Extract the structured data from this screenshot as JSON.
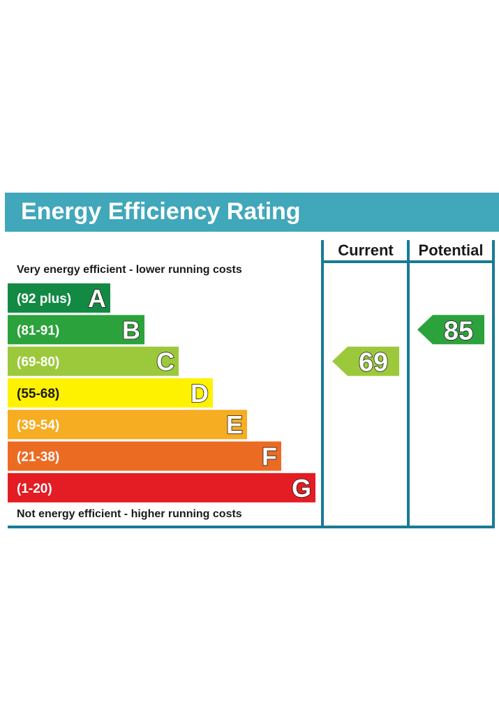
{
  "title": "Energy Efficiency Rating",
  "columns": {
    "current": "Current",
    "potential": "Potential"
  },
  "top_note": "Very energy efficient - lower running costs",
  "bottom_note": "Not energy efficient - higher running costs",
  "colors": {
    "header": "#41a7bb",
    "frame": "#1a7a96",
    "bands": [
      "#138a43",
      "#2ca23c",
      "#9cc93b",
      "#fff200",
      "#f6ad22",
      "#ec6b23",
      "#e31d23"
    ]
  },
  "chart_data": {
    "type": "bar",
    "categories": [
      "A",
      "B",
      "C",
      "D",
      "E",
      "F",
      "G"
    ],
    "ranges": [
      "(92 plus)",
      "(81-91)",
      "(69-80)",
      "(55-68)",
      "(39-54)",
      "(21-38)",
      "(1-20)"
    ],
    "current": {
      "value": 69,
      "band": "C"
    },
    "potential": {
      "value": 85,
      "band": "B"
    }
  }
}
